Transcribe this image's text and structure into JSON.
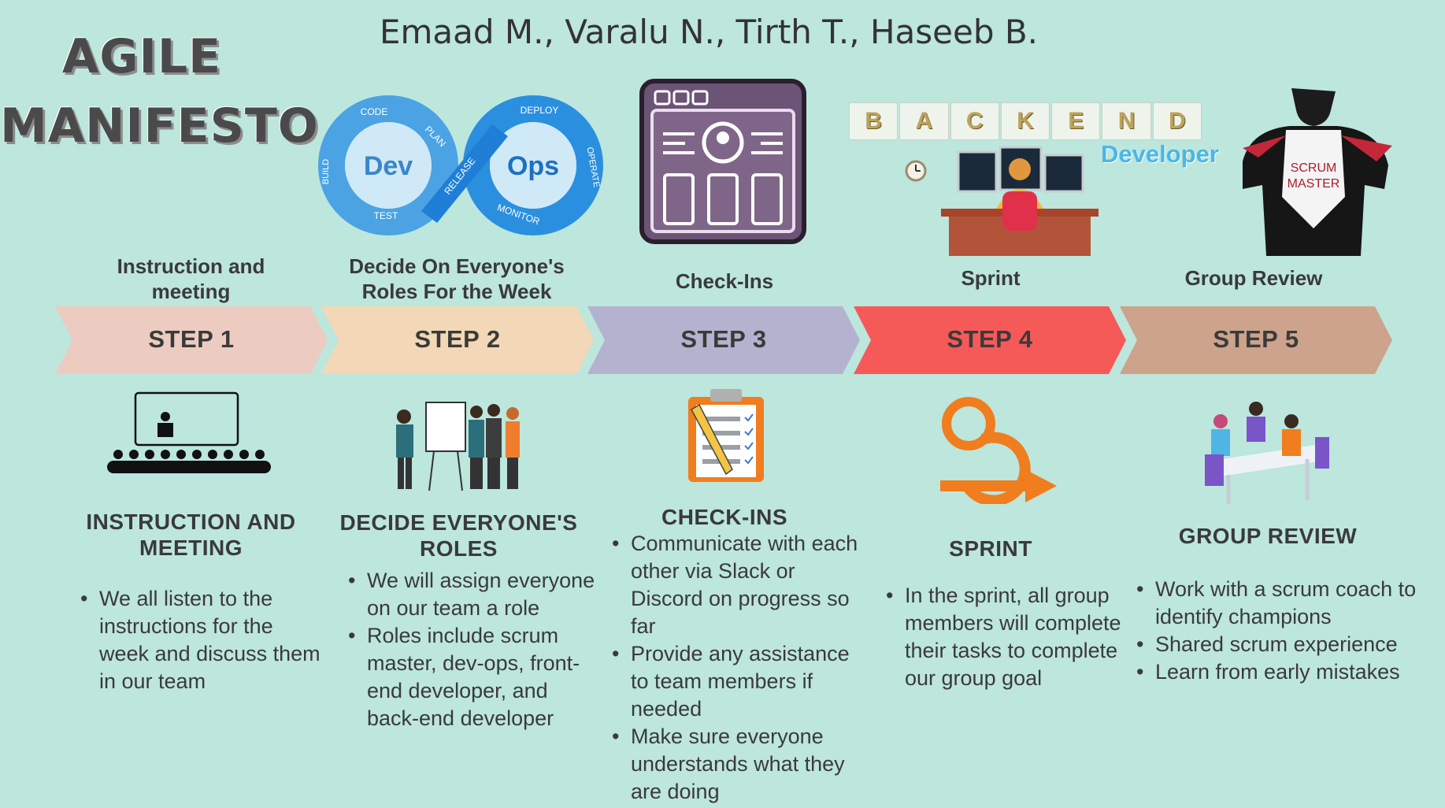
{
  "header": {
    "title_line1": "AGILE",
    "title_line2": "MANIFESTO",
    "authors": "Emaad M., Varalu N., Tirth T., Haseeb B."
  },
  "devops_graphic": {
    "left_word": "Dev",
    "right_word": "Ops",
    "stages": [
      "CODE",
      "PLAN",
      "BUILD",
      "TEST",
      "RELEASE",
      "DEPLOY",
      "OPERATE",
      "MONITOR"
    ]
  },
  "backend_graphic": {
    "letters": [
      "B",
      "A",
      "C",
      "K",
      "E",
      "N",
      "D"
    ],
    "caption": "Developer"
  },
  "scrum_graphic": {
    "badge_line1": "SCRUM",
    "badge_line2": "MASTER"
  },
  "steps": [
    {
      "top_label": "Instruction and meeting",
      "chevron": "STEP 1",
      "color": "#ecccc1",
      "heading": "INSTRUCTION AND MEETING",
      "bullets": [
        "We all listen to the instructions for the week and discuss them in our team"
      ]
    },
    {
      "top_label": "Decide On Everyone's Roles For the Week",
      "chevron": "STEP 2",
      "color": "#f2d8b6",
      "heading": "DECIDE EVERYONE'S ROLES",
      "bullets": [
        "We will assign everyone on our team a role",
        "Roles include scrum master, dev-ops, front-end developer, and back-end developer"
      ]
    },
    {
      "top_label": "Check-Ins",
      "chevron": "STEP 3",
      "color": "#b4b2cf",
      "heading": "CHECK-INS",
      "bullets": [
        "Communicate with each other via Slack or Discord on progress so far",
        "Provide any assistance to team members if needed",
        "Make sure everyone understands what they are doing"
      ]
    },
    {
      "top_label": "Sprint",
      "chevron": "STEP 4",
      "color": "#f55a59",
      "heading": "SPRINT",
      "bullets": [
        "In the sprint, all group members will complete their tasks to complete our group goal"
      ]
    },
    {
      "top_label": "Group Review",
      "chevron": "STEP 5",
      "color": "#cda38c",
      "heading": "GROUP REVIEW",
      "bullets": [
        "Work with a scrum coach to identify champions",
        "Shared scrum experience",
        "Learn from early mistakes"
      ]
    }
  ]
}
